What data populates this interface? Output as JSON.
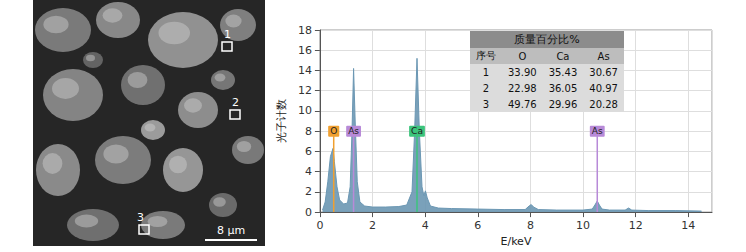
{
  "chart_data": {
    "type": "area",
    "x_label": "E/keV",
    "y_label": "光子计数",
    "x": [
      0.1,
      0.2,
      0.3,
      0.4,
      0.5,
      0.55,
      0.65,
      0.75,
      0.9,
      1.05,
      1.15,
      1.22,
      1.28,
      1.34,
      1.42,
      1.52,
      1.7,
      2.0,
      2.5,
      3.0,
      3.3,
      3.5,
      3.6,
      3.69,
      3.78,
      3.88,
      3.95,
      4.01,
      4.08,
      4.2,
      4.5,
      5.0,
      6.0,
      7.0,
      7.8,
      7.95,
      8.03,
      8.12,
      8.3,
      9.0,
      10.0,
      10.35,
      10.45,
      10.54,
      10.62,
      10.72,
      11.0,
      11.6,
      11.73,
      11.85,
      12.5,
      13.5,
      14.5
    ],
    "values": [
      0.2,
      1.0,
      3.0,
      5.5,
      6.3,
      5.0,
      2.5,
      1.2,
      0.8,
      0.9,
      2.5,
      8.0,
      14.2,
      9.0,
      3.0,
      1.0,
      0.6,
      0.5,
      0.5,
      0.55,
      0.7,
      2.0,
      8.0,
      15.2,
      8.0,
      2.5,
      1.6,
      2.1,
      1.4,
      0.6,
      0.4,
      0.35,
      0.3,
      0.25,
      0.25,
      0.6,
      0.75,
      0.5,
      0.25,
      0.2,
      0.2,
      0.3,
      0.7,
      1.1,
      0.7,
      0.3,
      0.2,
      0.2,
      0.4,
      0.2,
      0.15,
      0.15,
      0.1
    ],
    "color": "#6b97b3",
    "xlim": [
      0,
      14.9
    ],
    "xticks": [
      0,
      2,
      4,
      6,
      8,
      10,
      12,
      14
    ],
    "ylim": [
      0,
      18
    ],
    "yticks": [
      0,
      2,
      4,
      6,
      8,
      10,
      12,
      14,
      16,
      18
    ],
    "grid": true,
    "annotations": [
      {
        "text": "O",
        "x": 0.525,
        "y": 8,
        "color": "#f0a030"
      },
      {
        "text": "As",
        "x": 1.28,
        "y": 8,
        "color": "#b88ad8"
      },
      {
        "text": "Ca",
        "x": 3.69,
        "y": 8,
        "color": "#3cc47c"
      },
      {
        "text": "As",
        "x": 10.54,
        "y": 8,
        "color": "#b88ad8"
      }
    ]
  },
  "table": {
    "title": "质量百分比%",
    "columns": [
      "序号",
      "O",
      "Ca",
      "As"
    ],
    "rows": [
      [
        "1",
        "33.90",
        "35.43",
        "30.67"
      ],
      [
        "2",
        "22.98",
        "36.05",
        "40.97"
      ],
      [
        "3",
        "49.76",
        "29.96",
        "20.28"
      ]
    ]
  },
  "micrograph": {
    "regions": [
      "1",
      "2",
      "3"
    ],
    "scale_bar": "8 μm"
  }
}
